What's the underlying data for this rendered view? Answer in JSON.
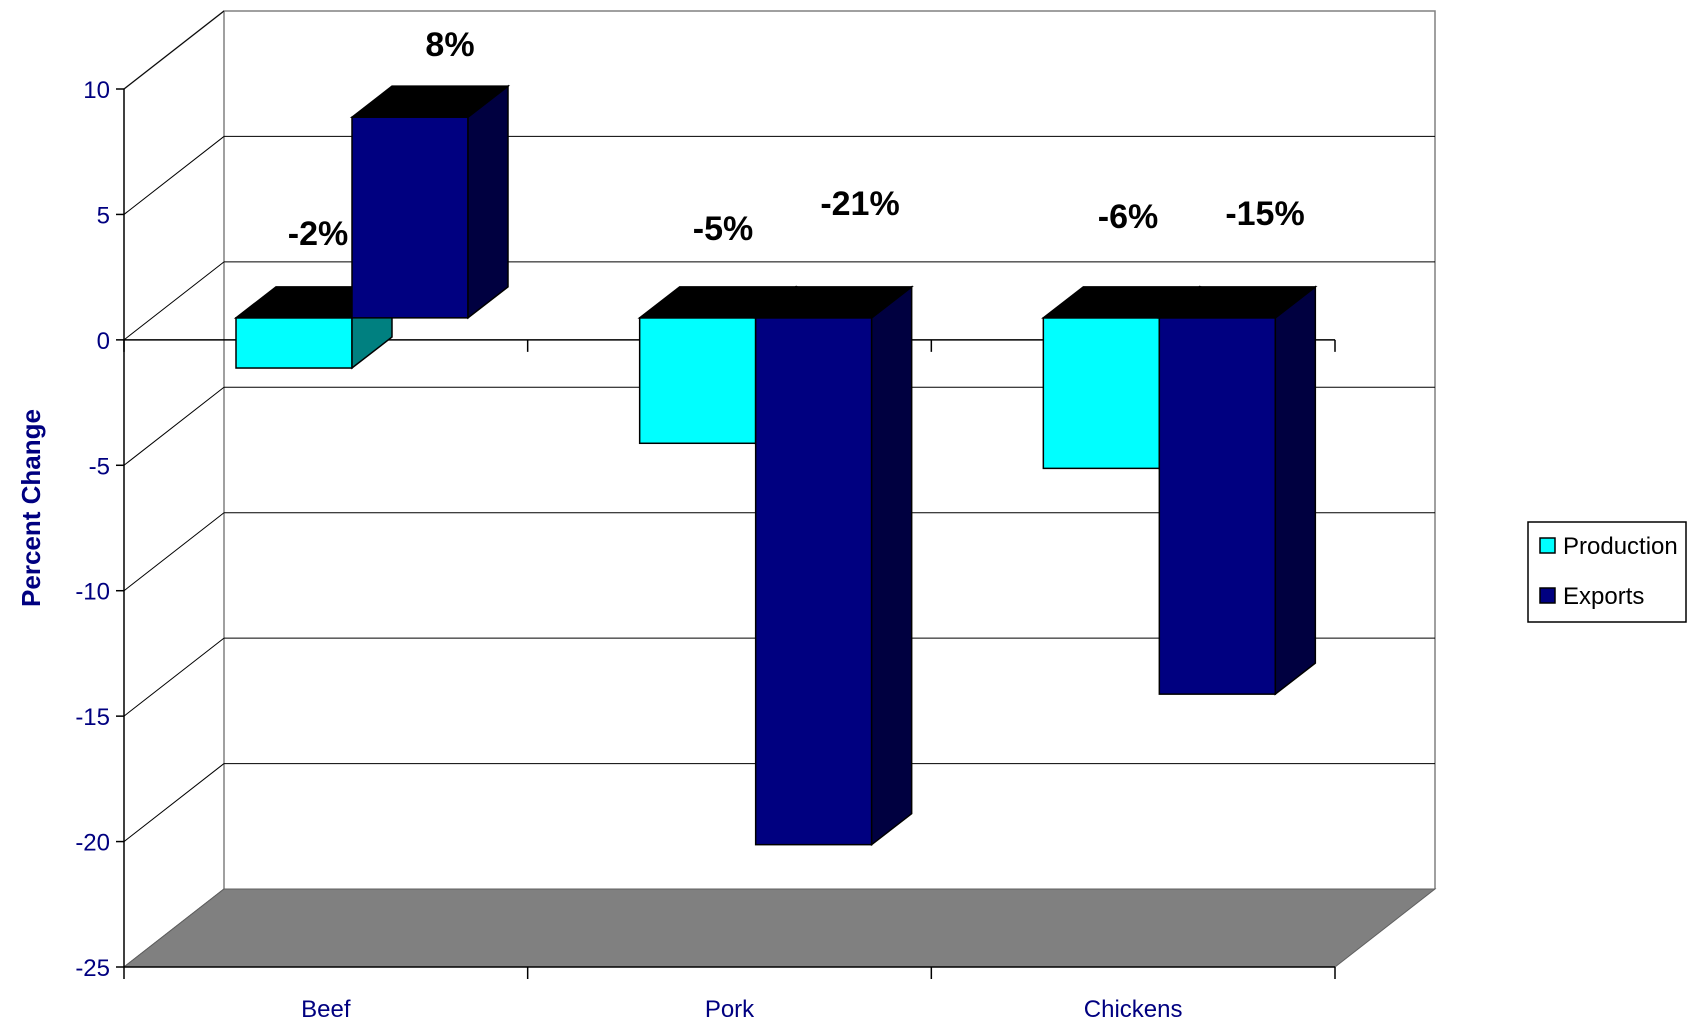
{
  "chart_data": {
    "type": "bar",
    "categories": [
      "Beef",
      "Pork",
      "Chickens"
    ],
    "series": [
      {
        "name": "Production",
        "values": [
          -2,
          -5,
          -6
        ],
        "labels": [
          "-2%",
          "-5%",
          "-6%"
        ],
        "color": "#00FFFF"
      },
      {
        "name": "Exports",
        "values": [
          8,
          -21,
          -15
        ],
        "labels": [
          "8%",
          "-21%",
          "-15%"
        ],
        "color": "#000080"
      }
    ],
    "ylabel": "Percent Change",
    "xlabel": "",
    "ylim": [
      -25,
      10
    ],
    "yticks": [
      "10",
      "5",
      "0",
      "-5",
      "-10",
      "-15",
      "-20",
      "-25"
    ],
    "grid": true,
    "legend": "right",
    "colors": {
      "floor": "#808080",
      "grid": "#000000",
      "text": "#000080"
    }
  }
}
